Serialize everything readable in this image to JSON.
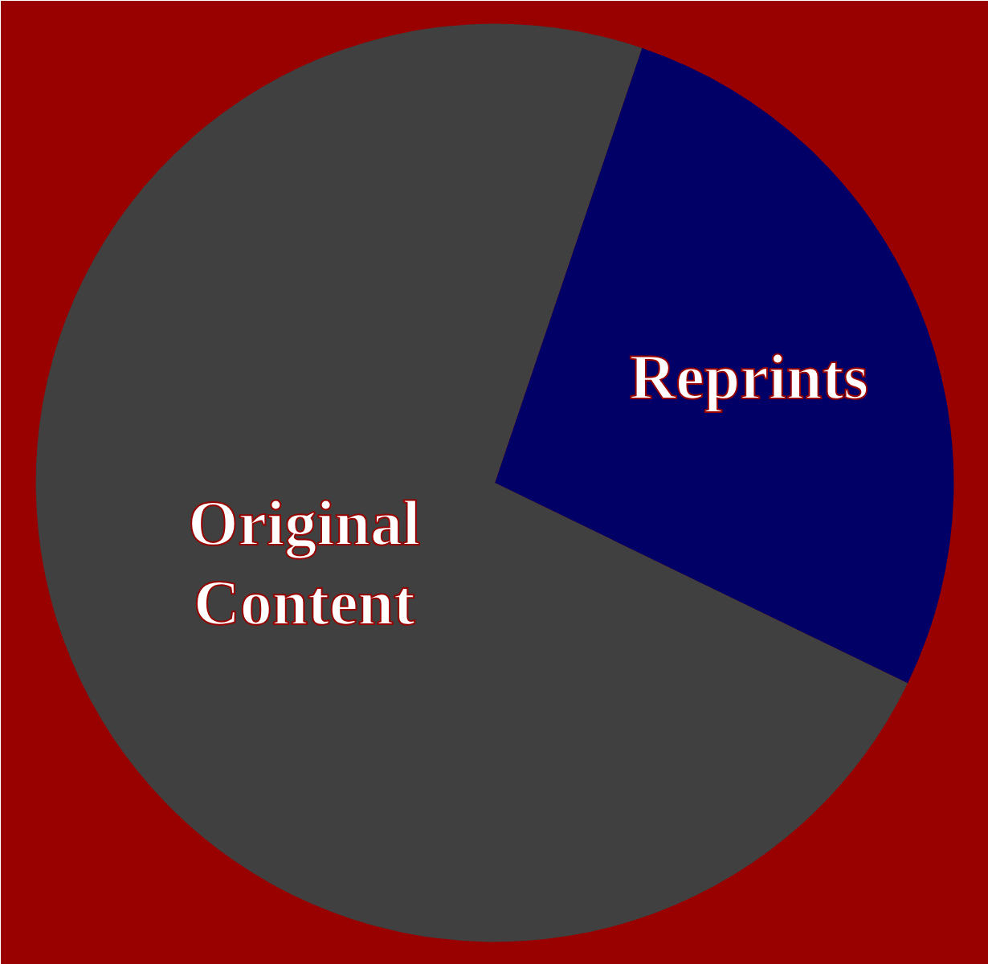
{
  "chart_data": {
    "type": "pie",
    "categories": [
      "Reprints",
      "Original Content"
    ],
    "values": [
      27,
      73
    ],
    "colors": [
      "#000066",
      "#404040"
    ]
  }
}
